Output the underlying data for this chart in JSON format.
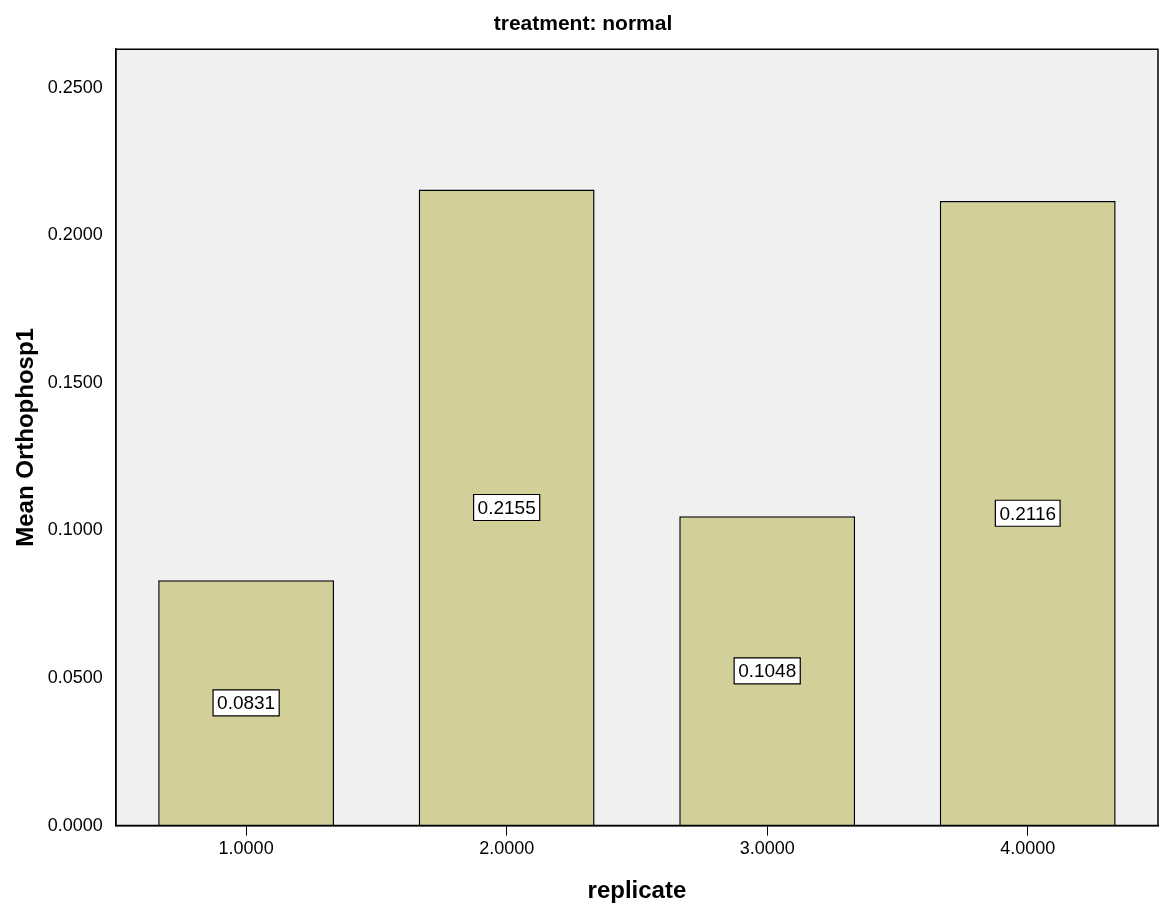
{
  "chart_data": {
    "type": "bar",
    "title": "treatment: normal",
    "xlabel": "replicate",
    "ylabel": "Mean Orthophosp1",
    "categories": [
      "1.0000",
      "2.0000",
      "3.0000",
      "4.0000"
    ],
    "values": [
      0.0831,
      0.2155,
      0.1048,
      0.2116
    ],
    "color": "#d3cf98",
    "ylim": [
      0,
      0.263
    ],
    "yticks": [
      {
        "value": 0,
        "label": "0.0000"
      },
      {
        "value": 0.05,
        "label": "0.0500"
      },
      {
        "value": 0.1,
        "label": "0.1000"
      },
      {
        "value": 0.15,
        "label": "0.1500"
      },
      {
        "value": 0.2,
        "label": "0.2000"
      },
      {
        "value": 0.25,
        "label": "0.2500"
      }
    ],
    "data_labels": true,
    "grid": false,
    "legend": false
  }
}
